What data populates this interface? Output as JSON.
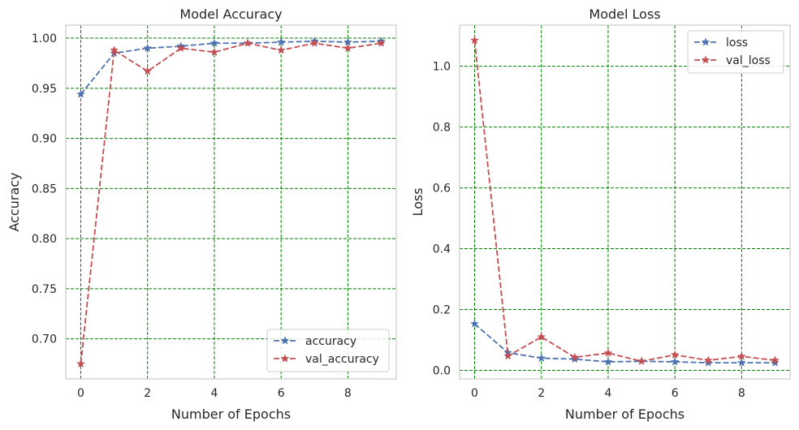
{
  "chart_data": [
    {
      "type": "line",
      "title": "Model Accuracy",
      "xlabel": "Number of Epochs",
      "ylabel": "Accuracy",
      "x": [
        0,
        1,
        2,
        3,
        4,
        5,
        6,
        7,
        8,
        9
      ],
      "xlim": [
        -0.45,
        9.45
      ],
      "ylim": [
        0.66,
        1.013
      ],
      "xticks": [
        0,
        2,
        4,
        6,
        8
      ],
      "yticks": [
        0.7,
        0.75,
        0.8,
        0.85,
        0.9,
        0.95,
        1.0
      ],
      "xtick_labels": [
        "0",
        "2",
        "4",
        "6",
        "8"
      ],
      "ytick_labels": [
        "0.70",
        "0.75",
        "0.80",
        "0.85",
        "0.90",
        "0.95",
        "1.00"
      ],
      "grid": true,
      "grid_color": "#008000",
      "legend_position": "lower-right",
      "series": [
        {
          "name": "accuracy",
          "color": "#4c72b0",
          "values": [
            0.944,
            0.985,
            0.99,
            0.992,
            0.995,
            0.995,
            0.996,
            0.997,
            0.996,
            0.997
          ]
        },
        {
          "name": "val_accuracy",
          "color": "#c44e52",
          "values": [
            0.675,
            0.988,
            0.967,
            0.99,
            0.986,
            0.995,
            0.988,
            0.995,
            0.99,
            0.995
          ]
        }
      ]
    },
    {
      "type": "line",
      "title": "Model Loss",
      "xlabel": "Number of Epochs",
      "ylabel": "Loss",
      "x": [
        0,
        1,
        2,
        3,
        4,
        5,
        6,
        7,
        8,
        9
      ],
      "xlim": [
        -0.45,
        9.45
      ],
      "ylim": [
        -0.028,
        1.135
      ],
      "xticks": [
        0,
        2,
        4,
        6,
        8
      ],
      "yticks": [
        0.0,
        0.2,
        0.4,
        0.6,
        0.8,
        1.0
      ],
      "xtick_labels": [
        "0",
        "2",
        "4",
        "6",
        "8"
      ],
      "ytick_labels": [
        "0.0",
        "0.2",
        "0.4",
        "0.6",
        "0.8",
        "1.0"
      ],
      "grid": true,
      "grid_color": "#008000",
      "legend_position": "top-right",
      "series": [
        {
          "name": "loss",
          "color": "#4c72b0",
          "values": [
            0.153,
            0.058,
            0.04,
            0.037,
            0.028,
            0.03,
            0.028,
            0.025,
            0.025,
            0.025
          ]
        },
        {
          "name": "val_loss",
          "color": "#c44e52",
          "values": [
            1.085,
            0.047,
            0.11,
            0.043,
            0.057,
            0.03,
            0.051,
            0.033,
            0.046,
            0.033
          ]
        }
      ]
    }
  ]
}
